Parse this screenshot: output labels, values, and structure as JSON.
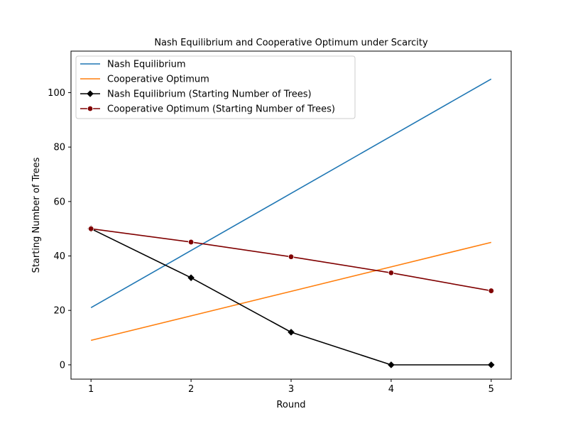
{
  "chart_data": {
    "type": "line",
    "title": "Nash Equilibrium and Cooperative Optimum under Scarcity",
    "xlabel": "Round",
    "ylabel": "Starting Number of Trees",
    "x": [
      1,
      2,
      3,
      4,
      5
    ],
    "x_ticks": [
      "1",
      "2",
      "3",
      "4",
      "5"
    ],
    "y_ticks": [
      "0",
      "20",
      "40",
      "60",
      "80",
      "100"
    ],
    "xlim": [
      0.8,
      5.2
    ],
    "ylim": [
      -5.25,
      115.25
    ],
    "grid": false,
    "legend_position": "top-left",
    "series": [
      {
        "name": "Nash Equilibrium",
        "values": [
          21,
          42,
          63,
          84,
          105
        ],
        "color": "#1f77b4",
        "marker": "none"
      },
      {
        "name": "Cooperative Optimum",
        "values": [
          9,
          18,
          27,
          36,
          45
        ],
        "color": "#ff7f0e",
        "marker": "none"
      },
      {
        "name": "Nash Equilibrium (Starting Number of Trees)",
        "values": [
          50,
          32,
          12,
          0,
          0
        ],
        "color": "#000000",
        "marker": "diamond"
      },
      {
        "name": "Cooperative Optimum (Starting Number of Trees)",
        "values": [
          50,
          45.1,
          39.7,
          33.8,
          27.2
        ],
        "color": "#800000",
        "marker": "circle"
      }
    ]
  }
}
